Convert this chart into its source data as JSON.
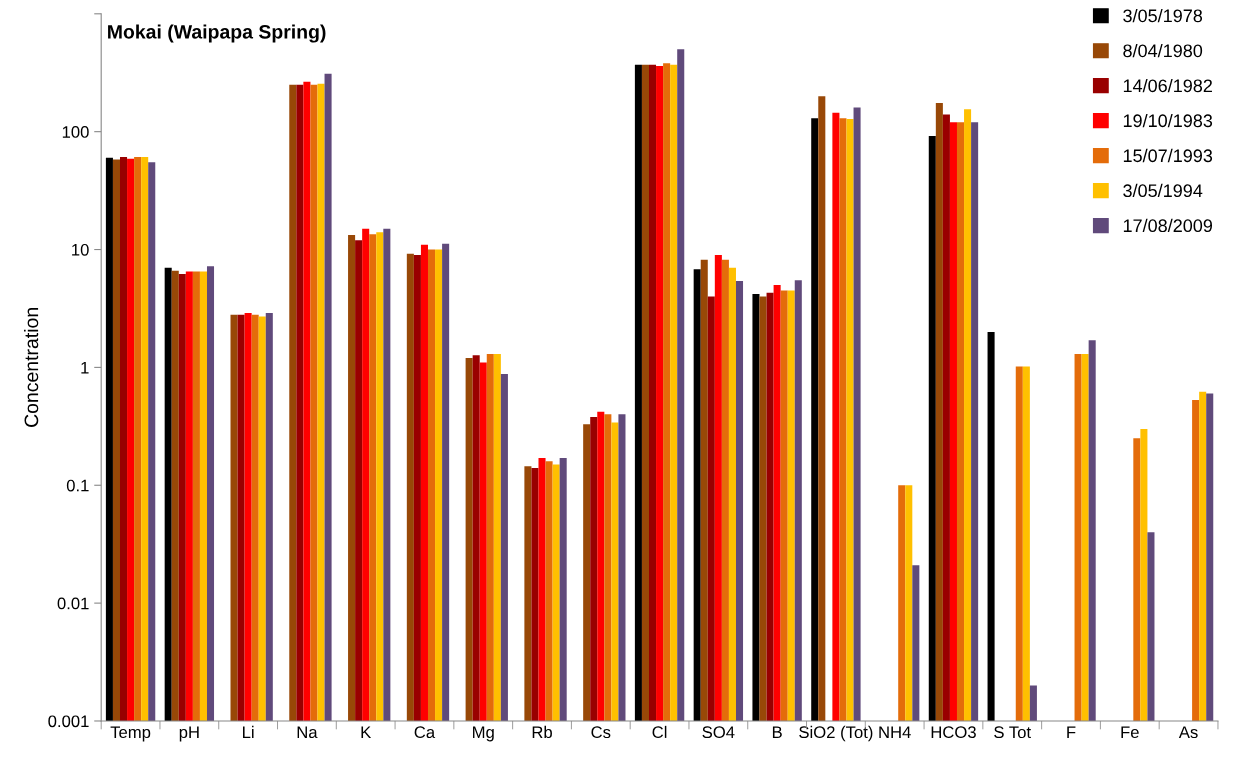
{
  "chart_data": {
    "type": "bar",
    "title": "Mokai (Waipapa Spring)",
    "ylabel": "Concentration",
    "categories": [
      "Temp",
      "pH",
      "Li",
      "Na",
      "K",
      "Ca",
      "Mg",
      "Rb",
      "Cs",
      "Cl",
      "SO4",
      "B",
      "SiO2 (Tot)",
      "NH4",
      "HCO3",
      "S Tot",
      "F",
      "Fe",
      "As"
    ],
    "series": [
      {
        "name": "3/05/1978",
        "color": "#000000",
        "values": [
          60,
          7.0,
          null,
          null,
          null,
          null,
          null,
          null,
          null,
          370,
          6.8,
          4.2,
          130,
          null,
          92,
          2.0,
          null,
          null,
          null
        ]
      },
      {
        "name": "8/04/1980",
        "color": "#984807",
        "values": [
          58,
          6.6,
          2.8,
          250,
          13.3,
          9.2,
          1.2,
          0.145,
          0.33,
          370,
          8.2,
          4.0,
          200,
          null,
          175,
          null,
          null,
          null,
          null
        ]
      },
      {
        "name": "14/06/1982",
        "color": "#990000",
        "values": [
          61,
          6.2,
          2.8,
          250,
          12,
          9.0,
          1.27,
          0.14,
          0.38,
          370,
          4.0,
          4.3,
          null,
          null,
          140,
          null,
          null,
          null,
          null
        ]
      },
      {
        "name": "19/10/1983",
        "color": "#ff0000",
        "values": [
          59,
          6.5,
          2.9,
          265,
          15,
          11,
          1.1,
          0.17,
          0.42,
          360,
          9.0,
          5.0,
          145,
          null,
          120,
          null,
          null,
          null,
          null
        ]
      },
      {
        "name": "15/07/1993",
        "color": "#e46c0a",
        "values": [
          61,
          6.5,
          2.8,
          250,
          13.5,
          10,
          1.3,
          0.16,
          0.4,
          380,
          8.2,
          4.5,
          130,
          0.1,
          120,
          1.02,
          1.3,
          0.25,
          0.53
        ]
      },
      {
        "name": "3/05/1994",
        "color": "#ffc000",
        "values": [
          61,
          6.5,
          2.7,
          255,
          14,
          10,
          1.3,
          0.15,
          0.34,
          370,
          7.0,
          4.5,
          128,
          0.1,
          155,
          1.02,
          1.3,
          0.3,
          0.62
        ]
      },
      {
        "name": "17/08/2009",
        "color": "#604a7b",
        "values": [
          55,
          7.2,
          2.9,
          310,
          15,
          11.2,
          0.88,
          0.17,
          0.4,
          500,
          5.4,
          5.5,
          160,
          0.021,
          120,
          0.002,
          1.7,
          0.04,
          0.6
        ]
      }
    ],
    "log": "y",
    "ylim": [
      0.001,
      1000
    ],
    "yticks": [
      0.001,
      0.01,
      0.1,
      1,
      10,
      100,
      {
        "value": 1000,
        "label": null
      }
    ],
    "grid": false,
    "legend": "top right"
  }
}
